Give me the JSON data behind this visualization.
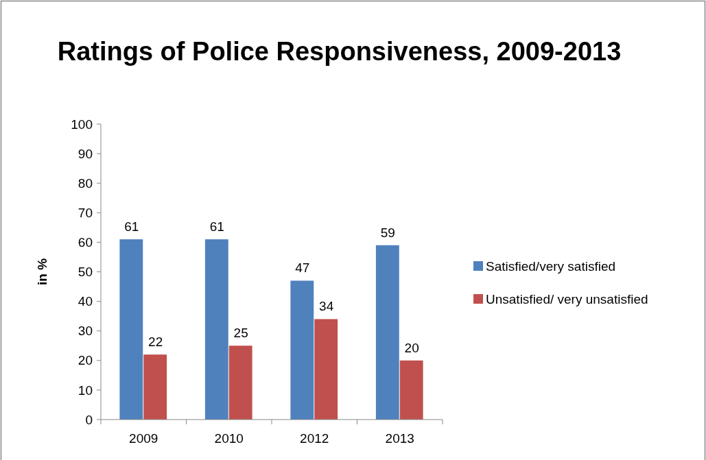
{
  "chart_data": {
    "type": "bar",
    "title": "Ratings of Police Responsiveness, 2009-2013",
    "ylabel": "in %",
    "categories": [
      "2009",
      "2010",
      "2012",
      "2013"
    ],
    "series": [
      {
        "name": "Satisfied/very satisfied",
        "color": "#4f81bd",
        "values": [
          61,
          61,
          47,
          59
        ]
      },
      {
        "name": "Unsatisfied/ very unsatisfied",
        "color": "#c0504d",
        "values": [
          22,
          25,
          34,
          20
        ]
      }
    ],
    "ylim": [
      0,
      100
    ],
    "yticks": [
      0,
      10,
      20,
      30,
      40,
      50,
      60,
      70,
      80,
      90,
      100
    ],
    "grid": false,
    "legend": "right",
    "data_labels": true
  }
}
